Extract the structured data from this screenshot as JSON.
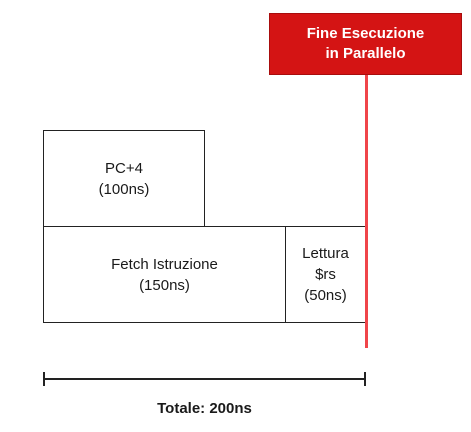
{
  "blocks": {
    "pc4": {
      "line1": "PC+4",
      "line2": "(100ns)"
    },
    "fetch": {
      "line1": "Fetch Istruzione",
      "line2": "(150ns)"
    },
    "read_rs": {
      "line1": "Lettura",
      "line2": "$rs",
      "line3": "(50ns)"
    }
  },
  "end_marker": {
    "line1": "Fine Esecuzione",
    "line2": "in Parallelo",
    "color": "#d41414"
  },
  "total": {
    "label": "Totale: 200ns"
  }
}
